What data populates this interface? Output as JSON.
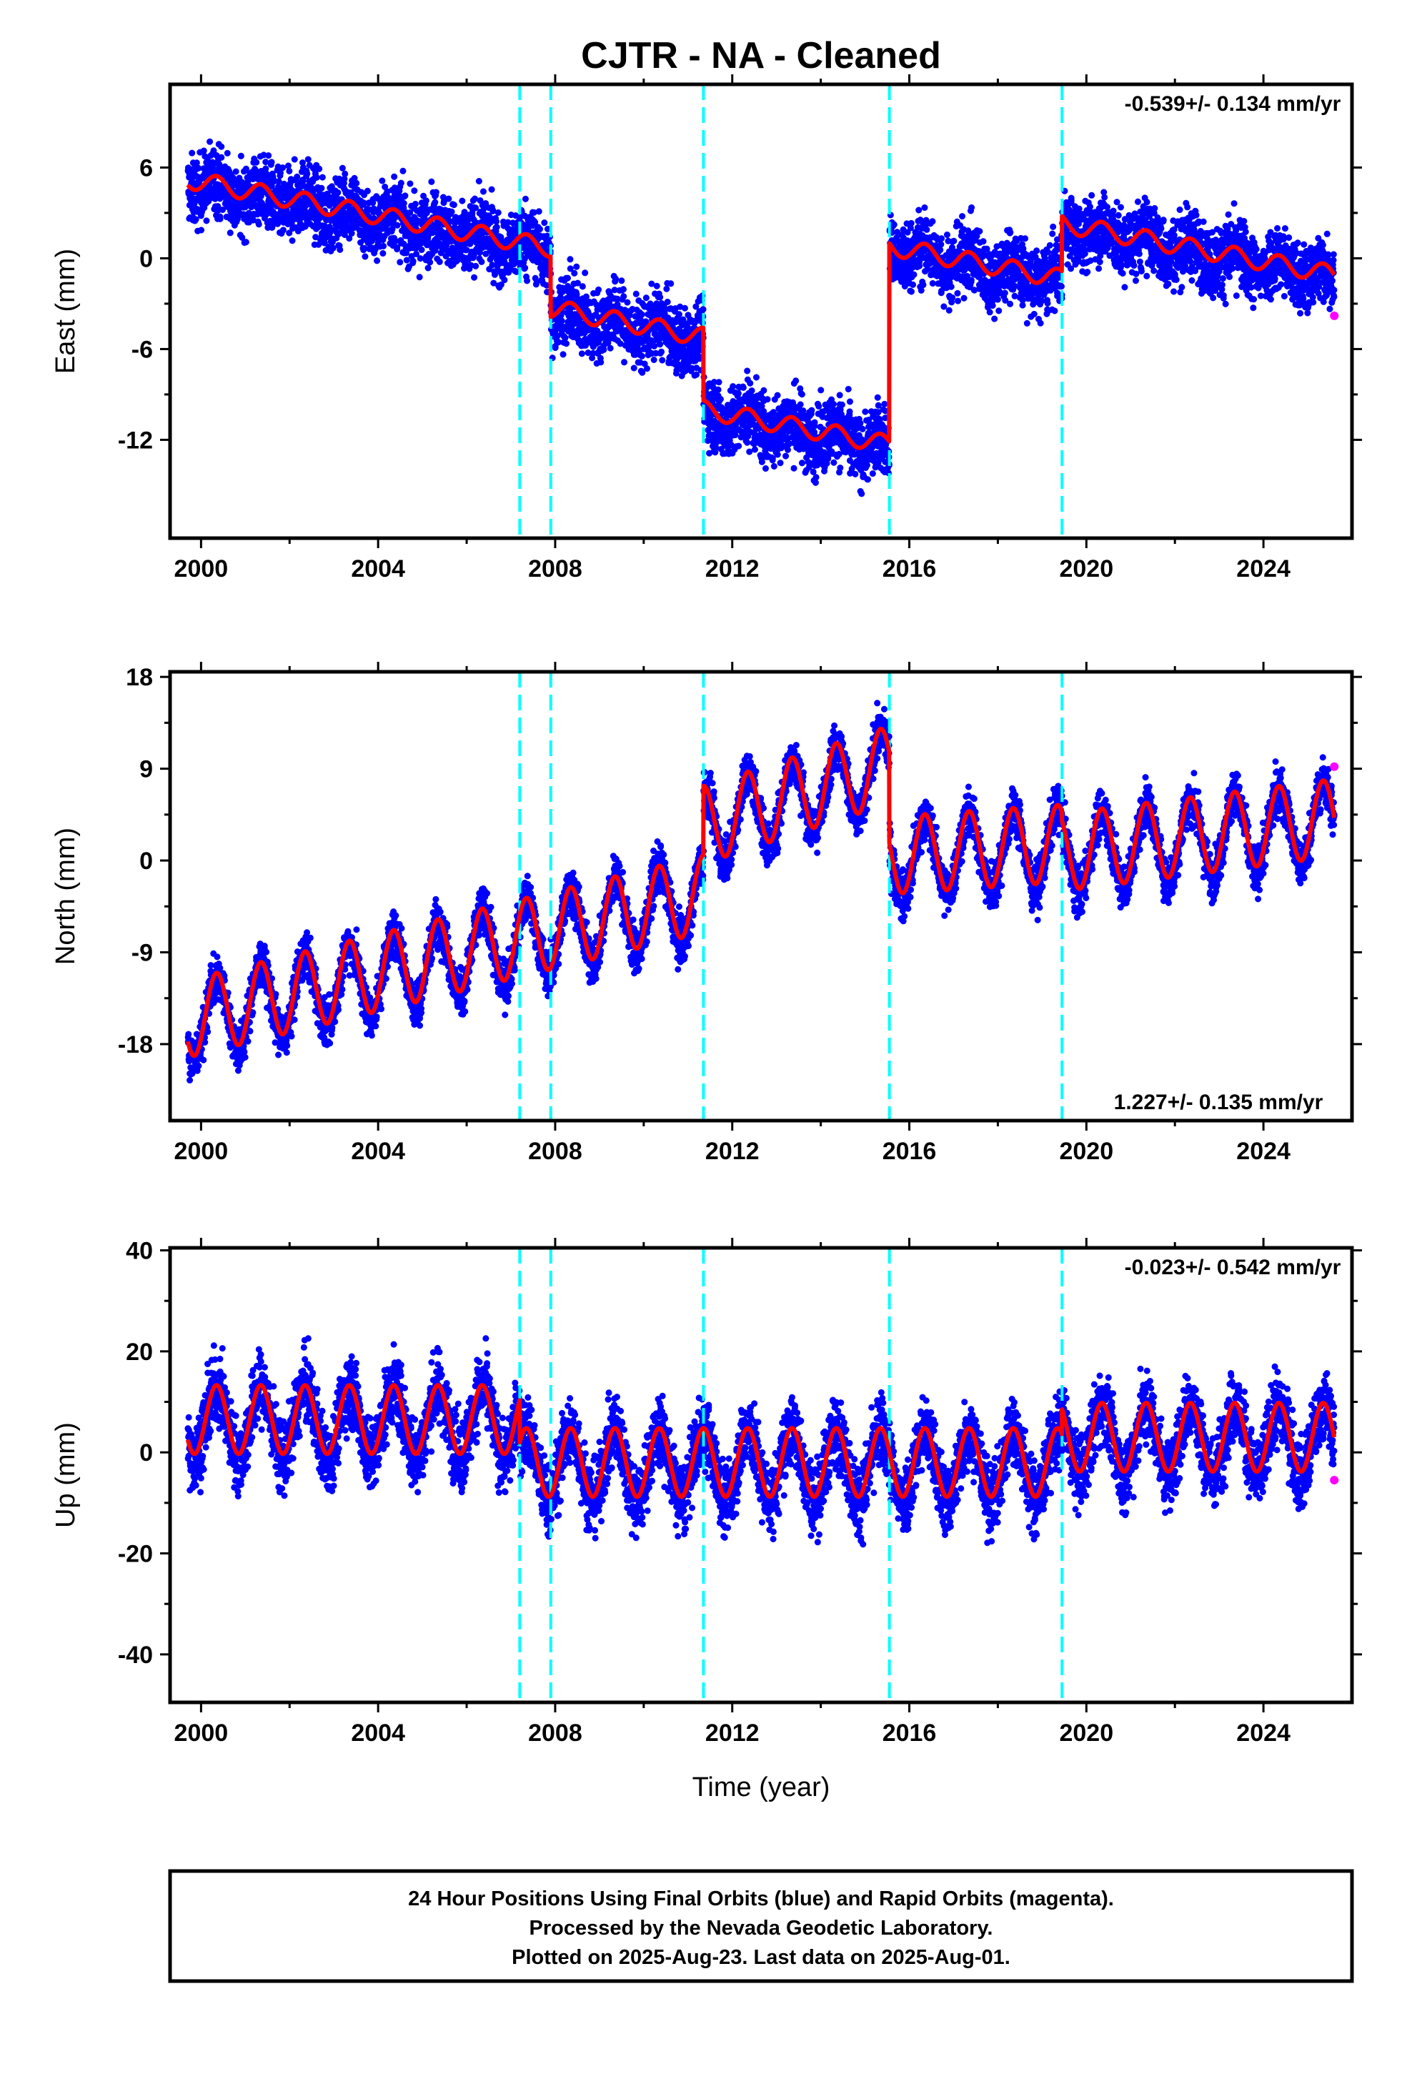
{
  "title": "CJTR  - NA - Cleaned",
  "xlabel": "Time (year)",
  "footer": {
    "line1": "24 Hour Positions Using Final Orbits (blue) and Rapid Orbits (magenta).",
    "line2": "Processed by the Nevada Geodetic Laboratory.",
    "line3": "Plotted on 2025-Aug-23. Last data on 2025-Aug-01."
  },
  "colors": {
    "final_orbits": "#0000ff",
    "rapid_orbits": "#ff00ff",
    "model": "#ff0000",
    "events": "#00ffff",
    "frame": "#000000"
  },
  "chart_data": [
    {
      "type": "scatter",
      "component": "east",
      "ylabel": "East (mm)",
      "rate_label": "-0.539+/- 0.134 mm/yr",
      "xlim": [
        1999.3,
        2026.0
      ],
      "ylim": [
        -18.5,
        11.5
      ],
      "xticks": [
        2000,
        2004,
        2008,
        2012,
        2016,
        2020,
        2024
      ],
      "yticks": [
        6,
        0,
        -6,
        -12
      ],
      "grid": false,
      "event_lines": [
        2007.2,
        2007.9,
        2011.35,
        2015.55,
        2019.45
      ],
      "model_segments": [
        {
          "start": 1999.7,
          "end": 2007.9,
          "offset": 5.2,
          "rate": -0.55,
          "annual_amp": 0.6
        },
        {
          "start": 2007.9,
          "end": 2011.35,
          "offset": -3.3,
          "rate": -0.55,
          "annual_amp": 0.6
        },
        {
          "start": 2011.35,
          "end": 2015.55,
          "offset": -10.0,
          "rate": -0.55,
          "annual_amp": 0.6
        },
        {
          "start": 2015.55,
          "end": 2019.45,
          "offset": 0.8,
          "rate": -0.55,
          "annual_amp": 0.6
        },
        {
          "start": 2019.45,
          "end": 2025.6,
          "offset": 2.3,
          "rate": -0.55,
          "annual_amp": 0.6
        }
      ],
      "data_summary": {
        "start": 1999.7,
        "end": 2025.6,
        "scatter_sd": 1.6
      },
      "rapid_point": {
        "x": 2025.6,
        "y": -3.8
      }
    },
    {
      "type": "scatter",
      "component": "north",
      "ylabel": "North (mm)",
      "rate_label": "1.227+/- 0.135 mm/yr",
      "xlim": [
        1999.3,
        2026.0
      ],
      "ylim": [
        -25.5,
        18.5
      ],
      "xticks": [
        2000,
        2004,
        2008,
        2012,
        2016,
        2020,
        2024
      ],
      "yticks": [
        18,
        9,
        0,
        -9,
        -18
      ],
      "grid": false,
      "event_lines": [
        2007.2,
        2007.9,
        2011.35,
        2015.55,
        2019.45
      ],
      "model_segments": [
        {
          "start": 1999.7,
          "end": 2011.35,
          "offset": -15.5,
          "rate": 1.05,
          "annual_amp": 3.8
        },
        {
          "start": 2011.35,
          "end": 2015.55,
          "offset": 3.5,
          "rate": 1.4,
          "annual_amp": 3.8
        },
        {
          "start": 2015.55,
          "end": 2019.45,
          "offset": 0.5,
          "rate": 0.3,
          "annual_amp": 3.8
        },
        {
          "start": 2019.45,
          "end": 2025.6,
          "offset": 0.8,
          "rate": 0.55,
          "annual_amp": 3.8
        }
      ],
      "data_summary": {
        "start": 1999.7,
        "end": 2025.6,
        "scatter_sd": 1.6
      },
      "rapid_point": {
        "x": 2025.6,
        "y": 9.2
      }
    },
    {
      "type": "scatter",
      "component": "up",
      "ylabel": "Up (mm)",
      "rate_label": "-0.023+/- 0.542 mm/yr",
      "xlim": [
        1999.3,
        2026.0
      ],
      "ylim": [
        -49.5,
        40.5
      ],
      "xticks": [
        2000,
        2004,
        2008,
        2012,
        2016,
        2020,
        2024
      ],
      "yticks": [
        40,
        20,
        0,
        -20,
        -40
      ],
      "grid": false,
      "event_lines": [
        2007.2,
        2007.9,
        2011.35,
        2015.55,
        2019.45
      ],
      "model_segments": [
        {
          "start": 1999.7,
          "end": 2007.2,
          "offset": 6.5,
          "rate": 0.0,
          "annual_amp": 6.8
        },
        {
          "start": 2007.2,
          "end": 2019.45,
          "offset": -2.0,
          "rate": 0.0,
          "annual_amp": 6.8
        },
        {
          "start": 2019.45,
          "end": 2025.6,
          "offset": 3.0,
          "rate": 0.0,
          "annual_amp": 6.8
        }
      ],
      "data_summary": {
        "start": 1999.7,
        "end": 2025.6,
        "scatter_sd": 5.0
      },
      "rapid_point": {
        "x": 2025.6,
        "y": -5.5
      }
    }
  ]
}
